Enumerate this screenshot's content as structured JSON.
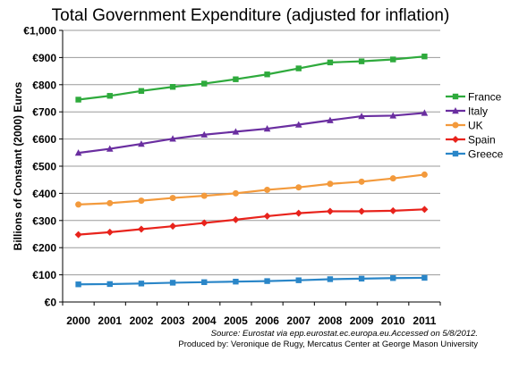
{
  "chart_data": {
    "type": "line",
    "title": "Total Government Expenditure (adjusted for inflation)",
    "ylabel": "Billions of Constant (2000) Euros",
    "xlabel": "",
    "ylim": [
      0,
      1000
    ],
    "yticks": [
      0,
      100,
      200,
      300,
      400,
      500,
      600,
      700,
      800,
      900,
      1000
    ],
    "ytick_labels": [
      "€0",
      "€100",
      "€200",
      "€300",
      "€400",
      "€500",
      "€600",
      "€700",
      "€800",
      "€900",
      "€1,000"
    ],
    "categories": [
      "2000",
      "2001",
      "2002",
      "2003",
      "2004",
      "2005",
      "2006",
      "2007",
      "2008",
      "2009",
      "2010",
      "2011"
    ],
    "grid": "horizontal",
    "legend_position": "right",
    "series": [
      {
        "name": "France",
        "color": "#2eaa3c",
        "marker": "square",
        "values": [
          745,
          759,
          777,
          792,
          804,
          820,
          838,
          860,
          882,
          886,
          893,
          904
        ]
      },
      {
        "name": "Italy",
        "color": "#6a2ea0",
        "marker": "triangle",
        "values": [
          549,
          564,
          582,
          601,
          616,
          627,
          638,
          653,
          669,
          684,
          686,
          696
        ]
      },
      {
        "name": "UK",
        "color": "#f39a3c",
        "marker": "circle",
        "values": [
          359,
          364,
          373,
          383,
          391,
          400,
          413,
          422,
          435,
          443,
          455,
          469
        ]
      },
      {
        "name": "Spain",
        "color": "#e8231c",
        "marker": "diamond",
        "values": [
          248,
          257,
          268,
          279,
          291,
          303,
          316,
          327,
          334,
          334,
          336,
          341
        ]
      },
      {
        "name": "Greece",
        "color": "#2a86c8",
        "marker": "square",
        "values": [
          65,
          66,
          68,
          71,
          73,
          75,
          77,
          80,
          84,
          86,
          88,
          89
        ]
      }
    ]
  },
  "source": {
    "line1": "Source: Eurostat via  epp.eurostat.ec.europa.eu.Accessed on 5/8/2012.",
    "line2": "Produced by: Veronique de Rugy, Mercatus Center at George Mason University"
  }
}
